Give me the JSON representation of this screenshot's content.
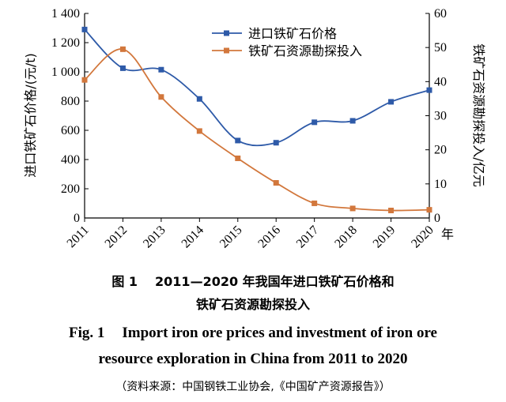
{
  "chart_data": {
    "type": "line",
    "categories": [
      "2011",
      "2012",
      "2013",
      "2014",
      "2015",
      "2016",
      "2017",
      "2018",
      "2019",
      "2020"
    ],
    "x_unit": "年",
    "ylabel_left": "进口铁矿石价格/(元/t)",
    "ylabel_right": "铁矿石资源勘探投入/亿元",
    "ylim_left": [
      0,
      1400
    ],
    "ylim_right": [
      0,
      60
    ],
    "yticks_left": [
      "0",
      "200",
      "400",
      "600",
      "800",
      "1 000",
      "1 200",
      "1 400"
    ],
    "yticks_right": [
      "0",
      "10",
      "20",
      "30",
      "40",
      "50",
      "60"
    ],
    "legend_position": "top-right",
    "series": [
      {
        "name": "进口铁矿石价格",
        "axis": "left",
        "marker": "square",
        "color": "#2e5aa8",
        "values": [
          1290,
          1025,
          1015,
          815,
          530,
          515,
          655,
          665,
          795,
          875
        ]
      },
      {
        "name": "铁矿石资源勘探投入",
        "axis": "right",
        "marker": "square",
        "color": "#d2773c",
        "values": [
          40.5,
          49.5,
          35.5,
          25.5,
          17.5,
          10.3,
          4.3,
          2.8,
          2.2,
          2.4
        ]
      }
    ]
  },
  "caption": {
    "cn_line1_label": "图 1",
    "cn_line1_text": "2011—2020 年我国年进口铁矿石价格和",
    "cn_line2": "铁矿石资源勘探投入",
    "en_line1_label": "Fig. 1",
    "en_line1_text": "Import iron ore prices and investment of iron ore",
    "en_line2": "resource exploration in China from 2011 to 2020",
    "source": "（资料来源：中国钢铁工业协会,《中国矿产资源报告》）"
  }
}
